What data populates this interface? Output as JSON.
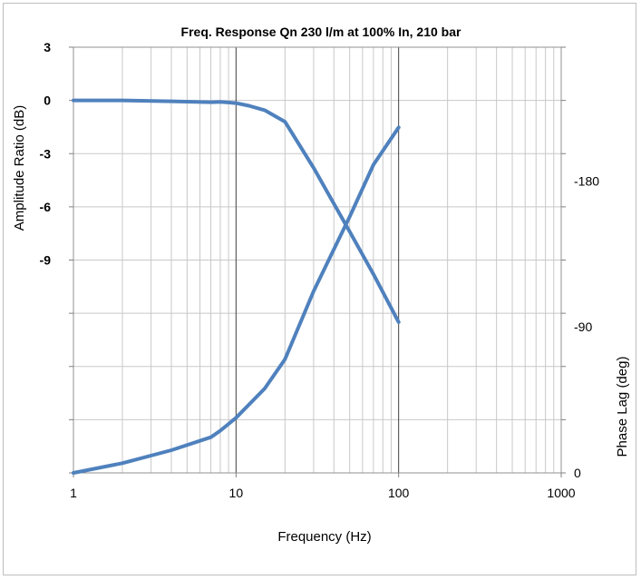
{
  "chart_data": {
    "type": "line",
    "title": "Freq. Response Qn 230 l/m at 100% In, 210 bar",
    "xlabel": "Frequency (Hz)",
    "ylabel": "Amplitude Ratio (dB)",
    "y2label": "Phase Lag (deg)",
    "xscale": "log",
    "xlim": [
      1,
      1000
    ],
    "xticks": [
      "1",
      "10",
      "100",
      "1000"
    ],
    "ylim": [
      -21,
      3
    ],
    "yticks": [
      "3",
      "0",
      "-3",
      "-6",
      "-9"
    ],
    "y2lim": [
      0,
      262.5
    ],
    "y2ticks": [
      "-180",
      "-90",
      "0"
    ],
    "grid": true,
    "colors": {
      "series": "#4f81bd",
      "grid": "#c8c8c8",
      "decade": "#404040"
    },
    "series": [
      {
        "axis": "left",
        "x": [
          1,
          2,
          4,
          7,
          8,
          10,
          12,
          15,
          20,
          30,
          50,
          70,
          100
        ],
        "y": [
          0,
          0,
          -0.05,
          -0.1,
          -0.08,
          -0.15,
          -0.3,
          -0.55,
          -1.2,
          -3.8,
          -7.4,
          -9.8,
          -12.5
        ]
      },
      {
        "axis": "right",
        "x": [
          1,
          2,
          4,
          7,
          8,
          10,
          15,
          20,
          30,
          50,
          70,
          100
        ],
        "y": [
          0,
          6,
          14,
          22,
          26,
          34,
          52,
          70,
          112,
          158,
          190,
          213
        ]
      }
    ]
  }
}
